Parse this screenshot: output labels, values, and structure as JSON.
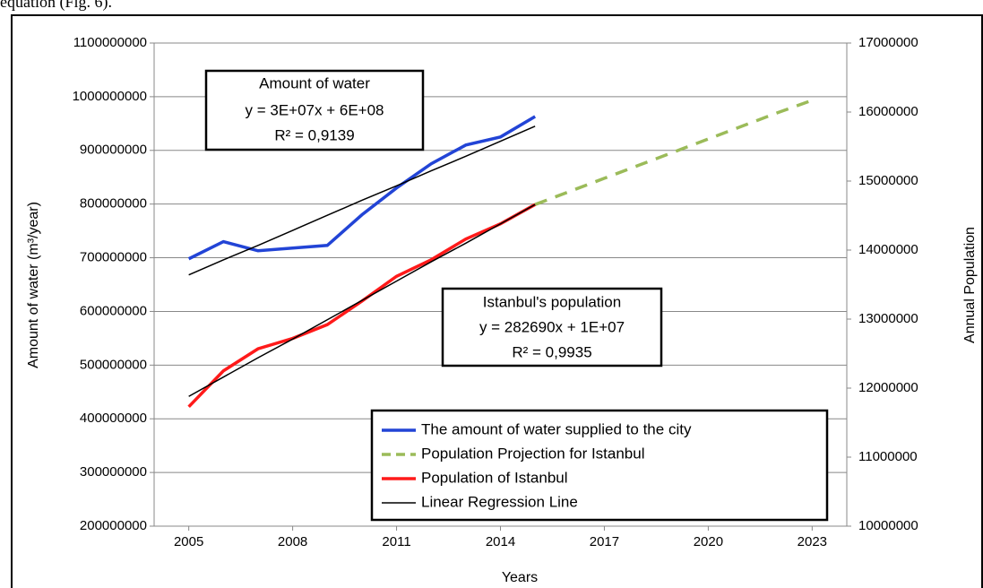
{
  "page_text": "equation (Fig. 6).",
  "chart_data": {
    "type": "line",
    "x_title": "Years",
    "y_title": "Amount of water  (m³/year)",
    "y2_title": "Annual Population",
    "x": [
      2005,
      2006,
      2007,
      2008,
      2009,
      2010,
      2011,
      2012,
      2013,
      2014,
      2015,
      2016,
      2017,
      2018,
      2019,
      2020,
      2021,
      2022,
      2023
    ],
    "xlim": [
      2004,
      2024
    ],
    "xticks": [
      2005,
      2008,
      2011,
      2014,
      2017,
      2020,
      2023
    ],
    "ylim": [
      200000000,
      1100000000
    ],
    "yticks": [
      200000000,
      300000000,
      400000000,
      500000000,
      600000000,
      700000000,
      800000000,
      900000000,
      1000000000,
      1100000000
    ],
    "y2lim": [
      10000000,
      17000000
    ],
    "y2ticks": [
      10000000,
      11000000,
      12000000,
      13000000,
      14000000,
      15000000,
      16000000,
      17000000
    ],
    "grid": true,
    "series": [
      {
        "name": "The amount of water supplied to the city",
        "color": "#2244d6",
        "values": [
          698000000,
          730000000,
          713000000,
          718000000,
          723000000,
          780000000,
          830000000,
          875000000,
          910000000,
          925000000,
          963000000,
          null,
          null,
          null,
          null,
          null,
          null,
          null,
          null
        ]
      },
      {
        "name": "Population Projection for Istanbul",
        "color": "#9bbb59",
        "dash": true,
        "axis": "y2",
        "values": [
          null,
          null,
          null,
          null,
          null,
          null,
          null,
          null,
          null,
          null,
          14660000,
          14850000,
          15040000,
          15230000,
          15420000,
          15610000,
          15800000,
          15990000,
          16170000
        ]
      },
      {
        "name": "Population of Istanbul",
        "color": "#ff1a1a",
        "axis": "y2",
        "values": [
          11730000,
          12250000,
          12570000,
          12720000,
          12920000,
          13260000,
          13620000,
          13860000,
          14160000,
          14380000,
          14660000,
          null,
          null,
          null,
          null,
          null,
          null,
          null,
          null
        ]
      },
      {
        "name": "Linear Regression Line",
        "color": "#000000",
        "trendline": true,
        "values": [
          668000000,
          696000000,
          723000000,
          751000000,
          779000000,
          807000000,
          834000000,
          862000000,
          889000000,
          917000000,
          945000000,
          null,
          null,
          null,
          null,
          null,
          null,
          null,
          null
        ]
      },
      {
        "color": "#000000",
        "trendline": true,
        "axis": "y2",
        "values": [
          11880000,
          12160000,
          12440000,
          12710000,
          12990000,
          13270000,
          13550000,
          13830000,
          14100000,
          14380000,
          14660000,
          null,
          null,
          null,
          null,
          null,
          null,
          null,
          null
        ]
      }
    ],
    "annotations": [
      {
        "lines": [
          "Amount of water",
          "y = 3E+07x + 6E+08",
          "R² = 0,9139"
        ]
      },
      {
        "lines": [
          "Istanbul's population",
          "y = 282690x + 1E+07",
          "R² = 0,9935"
        ]
      }
    ]
  }
}
